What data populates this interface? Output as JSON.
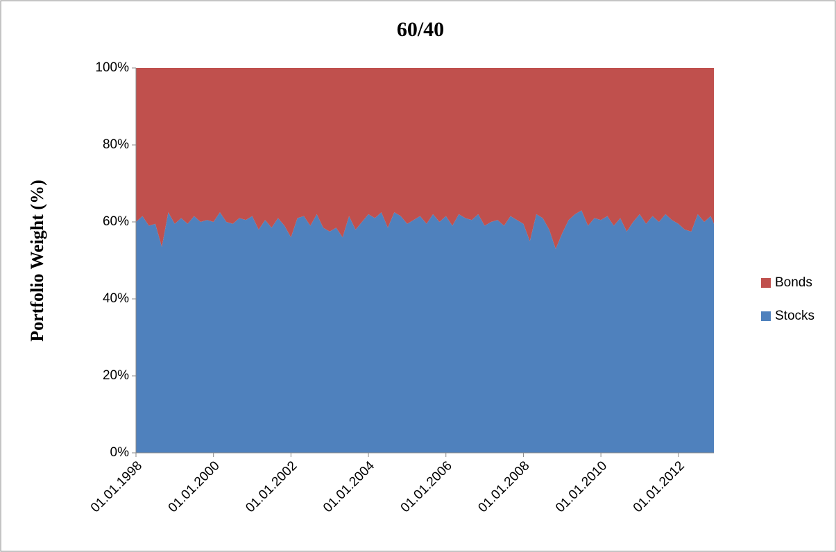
{
  "chart_data": {
    "type": "area",
    "stacked": true,
    "title": "60/40",
    "y_label": "Portfolio Weight (%)",
    "x": [
      "01.01.1998",
      "01.03.1998",
      "01.05.1998",
      "01.07.1998",
      "01.09.1998",
      "01.11.1998",
      "01.01.1999",
      "01.03.1999",
      "01.05.1999",
      "01.07.1999",
      "01.09.1999",
      "01.11.1999",
      "01.01.2000",
      "01.03.2000",
      "01.05.2000",
      "01.07.2000",
      "01.09.2000",
      "01.11.2000",
      "01.01.2001",
      "01.03.2001",
      "01.05.2001",
      "01.07.2001",
      "01.09.2001",
      "01.11.2001",
      "01.01.2002",
      "01.03.2002",
      "01.05.2002",
      "01.07.2002",
      "01.09.2002",
      "01.11.2002",
      "01.01.2003",
      "01.03.2003",
      "01.05.2003",
      "01.07.2003",
      "01.09.2003",
      "01.11.2003",
      "01.01.2004",
      "01.03.2004",
      "01.05.2004",
      "01.07.2004",
      "01.09.2004",
      "01.11.2004",
      "01.01.2005",
      "01.03.2005",
      "01.05.2005",
      "01.07.2005",
      "01.09.2005",
      "01.11.2005",
      "01.01.2006",
      "01.03.2006",
      "01.05.2006",
      "01.07.2006",
      "01.09.2006",
      "01.11.2006",
      "01.01.2007",
      "01.03.2007",
      "01.05.2007",
      "01.07.2007",
      "01.09.2007",
      "01.11.2007",
      "01.01.2008",
      "01.03.2008",
      "01.05.2008",
      "01.07.2008",
      "01.09.2008",
      "01.11.2008",
      "01.01.2009",
      "01.03.2009",
      "01.05.2009",
      "01.07.2009",
      "01.09.2009",
      "01.11.2009",
      "01.01.2010",
      "01.03.2010",
      "01.05.2010",
      "01.07.2010",
      "01.09.2010",
      "01.11.2010",
      "01.01.2011",
      "01.03.2011",
      "01.05.2011",
      "01.07.2011",
      "01.09.2011",
      "01.11.2011",
      "01.01.2012",
      "01.03.2012",
      "01.05.2012",
      "01.07.2012",
      "01.09.2012",
      "01.11.2012",
      "01.12.2012"
    ],
    "series": [
      {
        "name": "Stocks",
        "color": "#4f81bd",
        "values": [
          60,
          61.5,
          59,
          59.5,
          53.5,
          62.5,
          59.5,
          61,
          59.5,
          61.5,
          60,
          60.5,
          60,
          62.5,
          60,
          59.5,
          61,
          60.5,
          61.5,
          58,
          60.5,
          58.5,
          61,
          59,
          56,
          61,
          61.5,
          59,
          62,
          58.5,
          57.5,
          58.5,
          56,
          61.5,
          58,
          60,
          62,
          61,
          62.5,
          58.5,
          62.5,
          61.5,
          59.5,
          60.5,
          61.5,
          59.5,
          62,
          60,
          61.5,
          59,
          62,
          61,
          60.5,
          62,
          59,
          60,
          60.5,
          59,
          61.5,
          60.5,
          59.5,
          55,
          62,
          61,
          58,
          53,
          57,
          60.5,
          62,
          63,
          59,
          61,
          60.5,
          61.5,
          59,
          61,
          57.5,
          60,
          62,
          59.5,
          61.5,
          60,
          62,
          60.5,
          59.5,
          58,
          57.5,
          62,
          60,
          61.5,
          59.5
        ]
      },
      {
        "name": "Bonds",
        "color": "#c0504d",
        "values": [
          40,
          38.5,
          41,
          40.5,
          46.5,
          37.5,
          40.5,
          39,
          40.5,
          38.5,
          40,
          39.5,
          40,
          37.5,
          40,
          40.5,
          39,
          39.5,
          38.5,
          42,
          39.5,
          41.5,
          39,
          41,
          44,
          39,
          38.5,
          41,
          38,
          41.5,
          42.5,
          41.5,
          44,
          38.5,
          42,
          40,
          38,
          39,
          37.5,
          41.5,
          37.5,
          38.5,
          40.5,
          39.5,
          38.5,
          40.5,
          38,
          40,
          38.5,
          41,
          38,
          39,
          39.5,
          38,
          41,
          40,
          39.5,
          41,
          38.5,
          39.5,
          40.5,
          45,
          38,
          39,
          42,
          47,
          43,
          39.5,
          38,
          37,
          41,
          39,
          39.5,
          38.5,
          41,
          39,
          42.5,
          40,
          38,
          40.5,
          38.5,
          40,
          38,
          39.5,
          40.5,
          42,
          42.5,
          38,
          40,
          38.5,
          40.5
        ]
      }
    ],
    "xlim": [
      "01.01.1998",
      "01.12.2012"
    ],
    "xticks": [
      "01.01.1998",
      "01.01.2000",
      "01.01.2002",
      "01.01.2004",
      "01.01.2006",
      "01.01.2008",
      "01.01.2010",
      "01.01.2012"
    ],
    "ylim": [
      0,
      100
    ],
    "yticks": [
      {
        "value": 0,
        "label": "0%"
      },
      {
        "value": 20,
        "label": "20%"
      },
      {
        "value": 40,
        "label": "40%"
      },
      {
        "value": 60,
        "label": "60%"
      },
      {
        "value": 80,
        "label": "80%"
      },
      {
        "value": 100,
        "label": "100%"
      }
    ],
    "legend": "right"
  }
}
